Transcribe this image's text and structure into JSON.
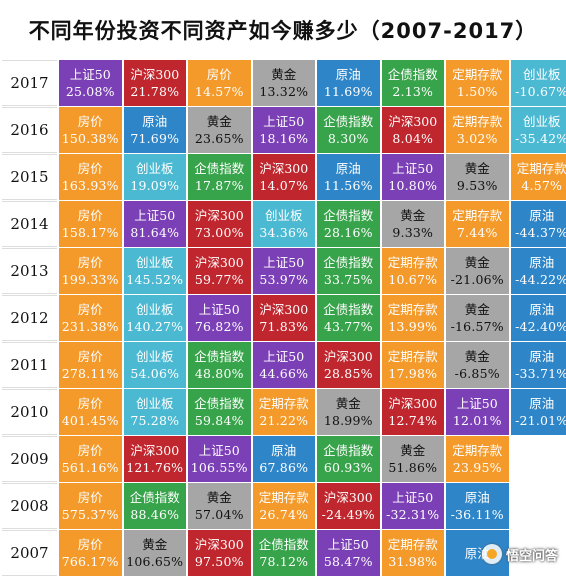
{
  "title": "不同年份投资不同资产如今赚多少（2007-2017）",
  "colors": {
    "上证50": "#7b3fb6",
    "沪深300": "#c0262d",
    "房价": "#f39a2b",
    "黄金": "#a6a6a6",
    "原油": "#2e86c9",
    "企债指数": "#37a34a",
    "定期存款": "#f39a2b",
    "创业板": "#4cb9d2"
  },
  "rows": [
    {
      "year": "2017",
      "cells": [
        {
          "name": "上证50",
          "pct": "25.08%"
        },
        {
          "name": "沪深300",
          "pct": "21.78%"
        },
        {
          "name": "房价",
          "pct": "14.57%"
        },
        {
          "name": "黄金",
          "pct": "13.32%"
        },
        {
          "name": "原油",
          "pct": "11.69%"
        },
        {
          "name": "企债指数",
          "pct": "2.13%"
        },
        {
          "name": "定期存款",
          "pct": "1.50%"
        },
        {
          "name": "创业板",
          "pct": "-10.67%"
        }
      ]
    },
    {
      "year": "2016",
      "cells": [
        {
          "name": "房价",
          "pct": "150.38%"
        },
        {
          "name": "原油",
          "pct": "71.69%"
        },
        {
          "name": "黄金",
          "pct": "23.65%"
        },
        {
          "name": "上证50",
          "pct": "18.16%"
        },
        {
          "name": "企债指数",
          "pct": "8.30%"
        },
        {
          "name": "沪深300",
          "pct": "8.04%"
        },
        {
          "name": "定期存款",
          "pct": "3.02%"
        },
        {
          "name": "创业板",
          "pct": "-35.42%"
        }
      ]
    },
    {
      "year": "2015",
      "cells": [
        {
          "name": "房价",
          "pct": "163.93%"
        },
        {
          "name": "创业板",
          "pct": "19.09%"
        },
        {
          "name": "企债指数",
          "pct": "17.87%"
        },
        {
          "name": "沪深300",
          "pct": "14.07%"
        },
        {
          "name": "原油",
          "pct": "11.56%"
        },
        {
          "name": "上证50",
          "pct": "10.80%"
        },
        {
          "name": "黄金",
          "pct": "9.53%"
        },
        {
          "name": "定期存款",
          "pct": "4.57%"
        }
      ]
    },
    {
      "year": "2014",
      "cells": [
        {
          "name": "房价",
          "pct": "158.17%"
        },
        {
          "name": "上证50",
          "pct": "81.64%"
        },
        {
          "name": "沪深300",
          "pct": "73.00%"
        },
        {
          "name": "创业板",
          "pct": "34.36%"
        },
        {
          "name": "企债指数",
          "pct": "28.16%"
        },
        {
          "name": "黄金",
          "pct": "9.33%"
        },
        {
          "name": "定期存款",
          "pct": "7.44%"
        },
        {
          "name": "原油",
          "pct": "-44.37%"
        }
      ]
    },
    {
      "year": "2013",
      "cells": [
        {
          "name": "房价",
          "pct": "199.33%"
        },
        {
          "name": "创业板",
          "pct": "145.52%"
        },
        {
          "name": "沪深300",
          "pct": "59.77%"
        },
        {
          "name": "上证50",
          "pct": "53.97%"
        },
        {
          "name": "企债指数",
          "pct": "33.75%"
        },
        {
          "name": "定期存款",
          "pct": "10.67%"
        },
        {
          "name": "黄金",
          "pct": "-21.06%"
        },
        {
          "name": "原油",
          "pct": "-44.22%"
        }
      ]
    },
    {
      "year": "2012",
      "cells": [
        {
          "name": "房价",
          "pct": "231.38%"
        },
        {
          "name": "创业板",
          "pct": "140.27%"
        },
        {
          "name": "上证50",
          "pct": "76.82%"
        },
        {
          "name": "沪深300",
          "pct": "71.83%"
        },
        {
          "name": "企债指数",
          "pct": "43.77%"
        },
        {
          "name": "定期存款",
          "pct": "13.99%"
        },
        {
          "name": "黄金",
          "pct": "-16.57%"
        },
        {
          "name": "原油",
          "pct": "-42.40%"
        }
      ]
    },
    {
      "year": "2011",
      "cells": [
        {
          "name": "房价",
          "pct": "278.11%"
        },
        {
          "name": "创业板",
          "pct": "54.06%"
        },
        {
          "name": "企债指数",
          "pct": "48.80%"
        },
        {
          "name": "上证50",
          "pct": "44.66%"
        },
        {
          "name": "沪深300",
          "pct": "28.85%"
        },
        {
          "name": "定期存款",
          "pct": "17.98%"
        },
        {
          "name": "黄金",
          "pct": "-6.85%"
        },
        {
          "name": "原油",
          "pct": "-33.71%"
        }
      ]
    },
    {
      "year": "2010",
      "cells": [
        {
          "name": "房价",
          "pct": "401.45%"
        },
        {
          "name": "创业板",
          "pct": "75.28%"
        },
        {
          "name": "企债指数",
          "pct": "59.84%"
        },
        {
          "name": "定期存款",
          "pct": "21.22%"
        },
        {
          "name": "黄金",
          "pct": "18.99%"
        },
        {
          "name": "沪深300",
          "pct": "12.74%"
        },
        {
          "name": "上证50",
          "pct": "12.01%"
        },
        {
          "name": "原油",
          "pct": "-21.01%"
        }
      ]
    },
    {
      "year": "2009",
      "cells": [
        {
          "name": "房价",
          "pct": "561.16%"
        },
        {
          "name": "沪深300",
          "pct": "121.76%"
        },
        {
          "name": "上证50",
          "pct": "106.55%"
        },
        {
          "name": "原油",
          "pct": "67.86%"
        },
        {
          "name": "企债指数",
          "pct": "60.93%"
        },
        {
          "name": "黄金",
          "pct": "51.86%"
        },
        {
          "name": "定期存款",
          "pct": "23.95%"
        },
        null
      ]
    },
    {
      "year": "2008",
      "cells": [
        {
          "name": "房价",
          "pct": "575.37%"
        },
        {
          "name": "企债指数",
          "pct": "88.46%"
        },
        {
          "name": "黄金",
          "pct": "57.04%"
        },
        {
          "name": "定期存款",
          "pct": "26.74%"
        },
        {
          "name": "沪深300",
          "pct": "-24.49%"
        },
        {
          "name": "上证50",
          "pct": "-32.31%"
        },
        {
          "name": "原油",
          "pct": "-36.11%"
        },
        null
      ]
    },
    {
      "year": "2007",
      "cells": [
        {
          "name": "房价",
          "pct": "766.17%"
        },
        {
          "name": "黄金",
          "pct": "106.65%"
        },
        {
          "name": "沪深300",
          "pct": "97.50%"
        },
        {
          "name": "企债指数",
          "pct": "78.12%"
        },
        {
          "name": "上证50",
          "pct": "58.47%"
        },
        {
          "name": "定期存款",
          "pct": "31.98%"
        },
        {
          "name": "原油",
          "pct": ""
        },
        null
      ]
    }
  ],
  "watermark": "悟空问答",
  "watermark_icon": "wukong-logo-icon"
}
